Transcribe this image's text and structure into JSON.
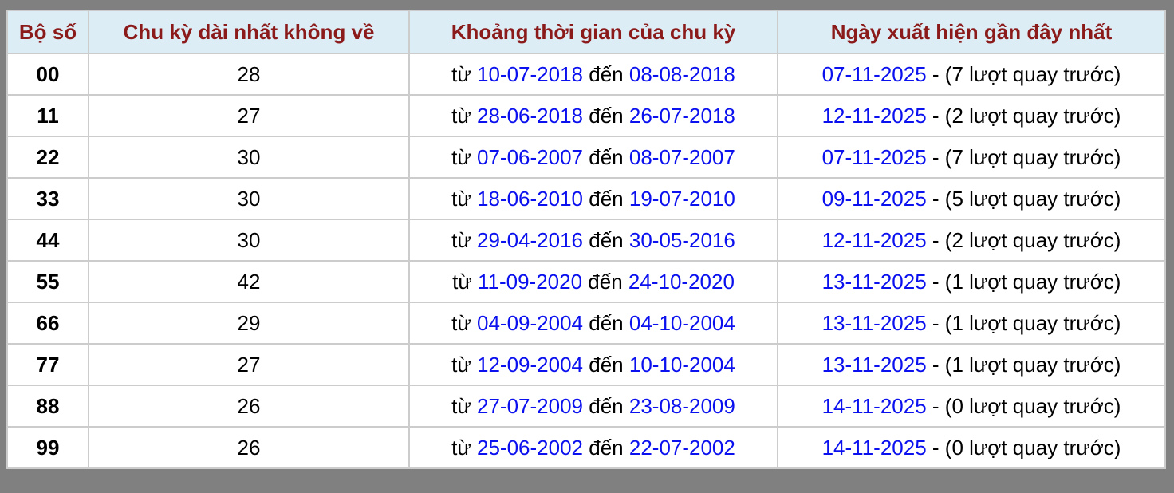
{
  "headers": [
    "Bộ số",
    "Chu kỳ dài nhất không về",
    "Khoảng thời gian của chu kỳ",
    "Ngày xuất hiện gần đây nhất"
  ],
  "labels": {
    "from": "từ",
    "to": "đến",
    "sep": " - "
  },
  "rows": [
    {
      "set": "00",
      "cycle": "28",
      "start": "10-07-2018",
      "end": "08-08-2018",
      "last": "07-11-2025",
      "ago": "(7 lượt quay trước)"
    },
    {
      "set": "11",
      "cycle": "27",
      "start": "28-06-2018",
      "end": "26-07-2018",
      "last": "12-11-2025",
      "ago": "(2 lượt quay trước)"
    },
    {
      "set": "22",
      "cycle": "30",
      "start": "07-06-2007",
      "end": "08-07-2007",
      "last": "07-11-2025",
      "ago": "(7 lượt quay trước)"
    },
    {
      "set": "33",
      "cycle": "30",
      "start": "18-06-2010",
      "end": "19-07-2010",
      "last": "09-11-2025",
      "ago": "(5 lượt quay trước)"
    },
    {
      "set": "44",
      "cycle": "30",
      "start": "29-04-2016",
      "end": "30-05-2016",
      "last": "12-11-2025",
      "ago": "(2 lượt quay trước)"
    },
    {
      "set": "55",
      "cycle": "42",
      "start": "11-09-2020",
      "end": "24-10-2020",
      "last": "13-11-2025",
      "ago": "(1 lượt quay trước)"
    },
    {
      "set": "66",
      "cycle": "29",
      "start": "04-09-2004",
      "end": "04-10-2004",
      "last": "13-11-2025",
      "ago": "(1 lượt quay trước)"
    },
    {
      "set": "77",
      "cycle": "27",
      "start": "12-09-2004",
      "end": "10-10-2004",
      "last": "13-11-2025",
      "ago": "(1 lượt quay trước)"
    },
    {
      "set": "88",
      "cycle": "26",
      "start": "27-07-2009",
      "end": "23-08-2009",
      "last": "14-11-2025",
      "ago": "(0 lượt quay trước)"
    },
    {
      "set": "99",
      "cycle": "26",
      "start": "25-06-2002",
      "end": "22-07-2002",
      "last": "14-11-2025",
      "ago": "(0 lượt quay trước)"
    }
  ],
  "colors": {
    "header_text": "#8b1a1a",
    "header_bg": "#ddedf5",
    "date": "#0a10ee",
    "frame": "#808080"
  }
}
